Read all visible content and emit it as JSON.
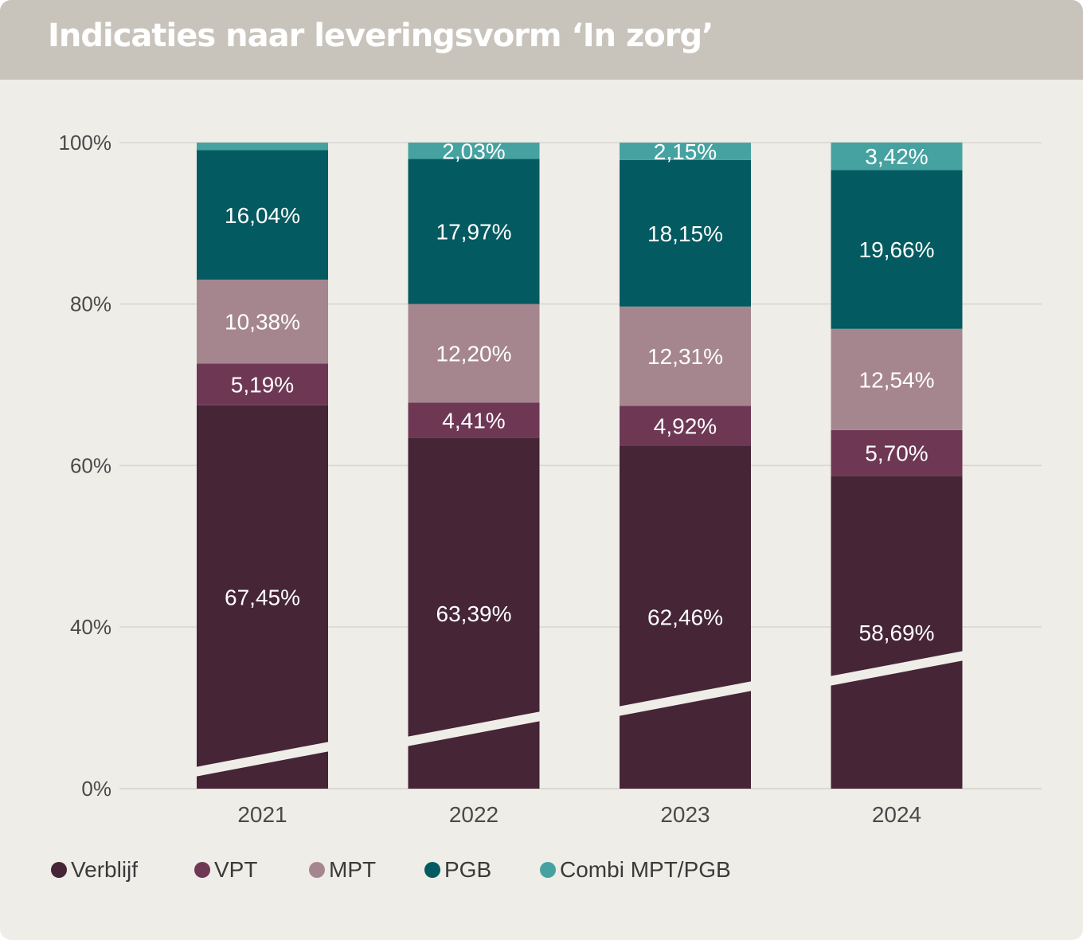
{
  "title": "Indicaties naar leveringsvorm ‘In zorg’",
  "chart_data": {
    "type": "bar",
    "stacked": true,
    "percent_stacked": true,
    "broken_axis": true,
    "categories": [
      "2021",
      "2022",
      "2023",
      "2024"
    ],
    "ylim": [
      0,
      100
    ],
    "yticks": [
      0,
      40,
      60,
      80,
      100
    ],
    "ytick_labels": [
      "0%",
      "40%",
      "60%",
      "80%",
      "100%"
    ],
    "grid": true,
    "legend_position": "bottom",
    "series": [
      {
        "name": "Verblijf",
        "color": "#452536",
        "values": [
          67.45,
          63.39,
          62.46,
          58.69
        ],
        "labels": [
          "67,45%",
          "63,39%",
          "62,46%",
          "58,69%"
        ]
      },
      {
        "name": "VPT",
        "color": "#6e3855",
        "values": [
          5.19,
          4.41,
          4.92,
          5.7
        ],
        "labels": [
          "5,19%",
          "4,41%",
          "4,92%",
          "5,70%"
        ]
      },
      {
        "name": "MPT",
        "color": "#a5868f",
        "values": [
          10.38,
          12.2,
          12.31,
          12.54
        ],
        "labels": [
          "10,38%",
          "12,20%",
          "12,31%",
          "12,54%"
        ]
      },
      {
        "name": "PGB",
        "color": "#035a60",
        "values": [
          16.04,
          17.97,
          18.15,
          19.66
        ],
        "labels": [
          "16,04%",
          "17,97%",
          "18,15%",
          "19,66%"
        ]
      },
      {
        "name": "Combi MPT/PGB",
        "color": "#46a2a0",
        "values": [
          0.94,
          2.03,
          2.15,
          3.42
        ],
        "labels": [
          "",
          "2,03%",
          "2,15%",
          "3,42%"
        ]
      }
    ]
  }
}
